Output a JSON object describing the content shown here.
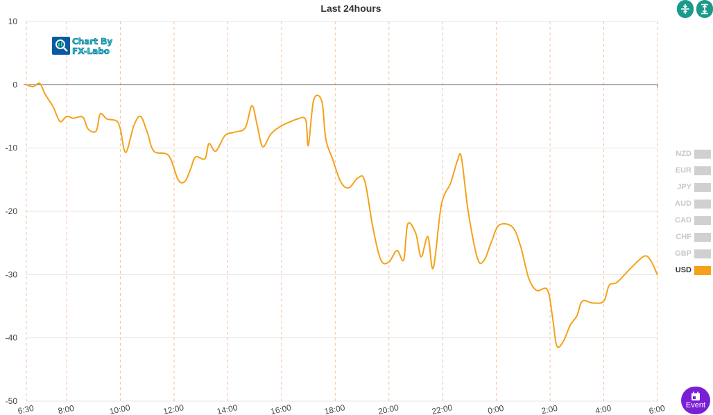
{
  "toolbar": {
    "compress_icon": "compress-vertical-icon",
    "expand_icon": "expand-vertical-icon"
  },
  "logo": {
    "line1": "Chart By",
    "line2": "FX-Labo"
  },
  "event_button": {
    "label": "Event",
    "icon": "calendar-icon"
  },
  "legend": [
    {
      "label": "NZD",
      "active": false
    },
    {
      "label": "EUR",
      "active": false
    },
    {
      "label": "JPY",
      "active": false
    },
    {
      "label": "AUD",
      "active": false
    },
    {
      "label": "CAD",
      "active": false
    },
    {
      "label": "CHF",
      "active": false
    },
    {
      "label": "GBP",
      "active": false
    },
    {
      "label": "USD",
      "active": true,
      "color": "#f5a11a"
    }
  ],
  "chart_data": {
    "type": "line",
    "title": "Last 24hours",
    "ylim": [
      -50,
      10
    ],
    "yticks": [
      10,
      0,
      -10,
      -20,
      -30,
      -40,
      -50
    ],
    "xlim_hours": [
      6.5,
      30
    ],
    "xticks": [
      {
        "label": "6:30",
        "h": 6.5
      },
      {
        "label": "8:00",
        "h": 8
      },
      {
        "label": "10:00",
        "h": 10
      },
      {
        "label": "12:00",
        "h": 12
      },
      {
        "label": "14:00",
        "h": 14
      },
      {
        "label": "16:00",
        "h": 16
      },
      {
        "label": "18:00",
        "h": 18
      },
      {
        "label": "20:00",
        "h": 20
      },
      {
        "label": "22:00",
        "h": 22
      },
      {
        "label": "0:00",
        "h": 24
      },
      {
        "label": "2:00",
        "h": 26
      },
      {
        "label": "4:00",
        "h": 28
      },
      {
        "label": "6:00",
        "h": 30
      }
    ],
    "grid": true,
    "legend_position": "right",
    "series": [
      {
        "name": "USD",
        "color": "#f5a11a",
        "points": [
          [
            6.5,
            0
          ],
          [
            6.75,
            -0.3
          ],
          [
            7.0,
            0.2
          ],
          [
            7.2,
            -1.5
          ],
          [
            7.5,
            -3.5
          ],
          [
            7.75,
            -5.8
          ],
          [
            8.0,
            -5.0
          ],
          [
            8.25,
            -5.3
          ],
          [
            8.6,
            -5.1
          ],
          [
            8.8,
            -7.0
          ],
          [
            9.1,
            -7.3
          ],
          [
            9.25,
            -4.6
          ],
          [
            9.5,
            -5.4
          ],
          [
            9.85,
            -5.7
          ],
          [
            10.0,
            -7.0
          ],
          [
            10.2,
            -10.7
          ],
          [
            10.5,
            -6.5
          ],
          [
            10.75,
            -5.0
          ],
          [
            11.0,
            -7.5
          ],
          [
            11.25,
            -10.5
          ],
          [
            11.8,
            -11.2
          ],
          [
            12.15,
            -15.0
          ],
          [
            12.4,
            -15.3
          ],
          [
            12.6,
            -13.5
          ],
          [
            12.8,
            -11.4
          ],
          [
            13.15,
            -11.7
          ],
          [
            13.3,
            -9.3
          ],
          [
            13.55,
            -10.5
          ],
          [
            13.9,
            -8.0
          ],
          [
            14.25,
            -7.5
          ],
          [
            14.65,
            -6.8
          ],
          [
            14.9,
            -3.3
          ],
          [
            15.1,
            -6.5
          ],
          [
            15.3,
            -9.8
          ],
          [
            15.6,
            -7.8
          ],
          [
            15.95,
            -6.6
          ],
          [
            16.3,
            -5.9
          ],
          [
            16.6,
            -5.4
          ],
          [
            16.9,
            -5.5
          ],
          [
            17.0,
            -9.6
          ],
          [
            17.2,
            -2.4
          ],
          [
            17.5,
            -2.6
          ],
          [
            17.65,
            -8.6
          ],
          [
            17.9,
            -11.7
          ],
          [
            18.2,
            -15.3
          ],
          [
            18.5,
            -16.3
          ],
          [
            18.85,
            -14.7
          ],
          [
            19.1,
            -15.2
          ],
          [
            19.4,
            -22.5
          ],
          [
            19.7,
            -27.7
          ],
          [
            20.0,
            -28.0
          ],
          [
            20.3,
            -26.2
          ],
          [
            20.55,
            -27.7
          ],
          [
            20.7,
            -22.0
          ],
          [
            21.0,
            -23.5
          ],
          [
            21.2,
            -27.2
          ],
          [
            21.45,
            -24.0
          ],
          [
            21.65,
            -29.0
          ],
          [
            21.95,
            -19.0
          ],
          [
            22.3,
            -15.5
          ],
          [
            22.55,
            -12.0
          ],
          [
            22.7,
            -11.5
          ],
          [
            22.95,
            -20.0
          ],
          [
            23.3,
            -27.5
          ],
          [
            23.55,
            -27.7
          ],
          [
            23.8,
            -25.0
          ],
          [
            24.1,
            -22.2
          ],
          [
            24.6,
            -22.5
          ],
          [
            24.9,
            -25.5
          ],
          [
            25.2,
            -30.5
          ],
          [
            25.5,
            -32.5
          ],
          [
            25.9,
            -32.4
          ],
          [
            26.1,
            -37.0
          ],
          [
            26.25,
            -41.3
          ],
          [
            26.5,
            -40.5
          ],
          [
            26.75,
            -38.0
          ],
          [
            27.0,
            -36.5
          ],
          [
            27.2,
            -34.2
          ],
          [
            27.6,
            -34.5
          ],
          [
            28.0,
            -34.2
          ],
          [
            28.2,
            -31.7
          ],
          [
            28.5,
            -31.2
          ],
          [
            29.0,
            -29.0
          ],
          [
            29.5,
            -27.1
          ],
          [
            29.75,
            -27.8
          ],
          [
            30.0,
            -30.1
          ]
        ]
      }
    ]
  }
}
